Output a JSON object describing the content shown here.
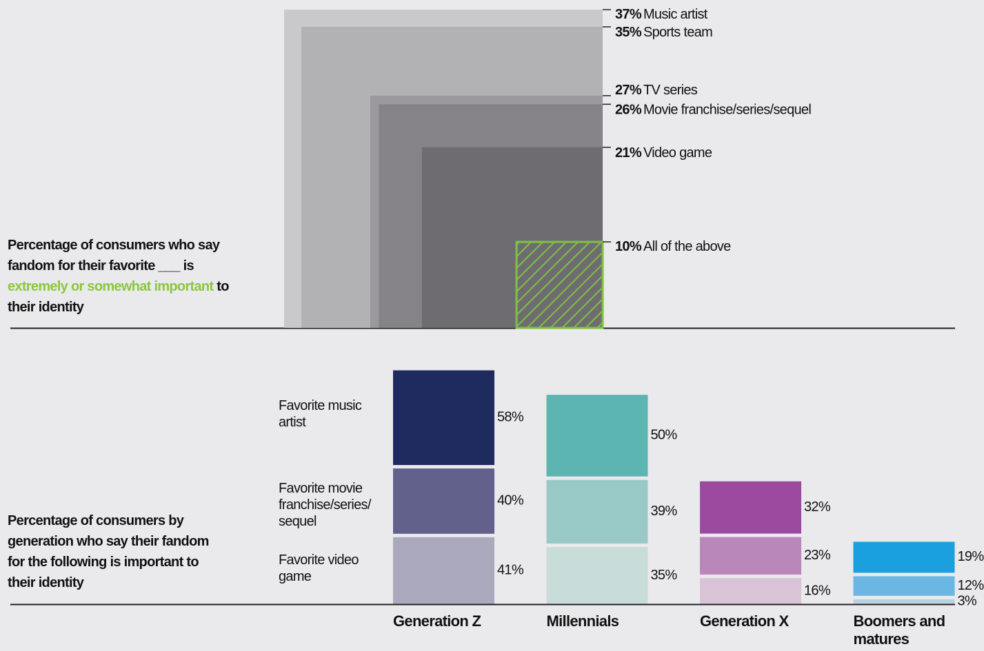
{
  "chart_data": [
    {
      "type": "nested-square",
      "title": "Percentage of consumers who say fandom for their favorite ___ is",
      "title_highlight": "extremely or somewhat important",
      "title_end": "to their identity",
      "categories": [
        "Music artist",
        "Sports team",
        "TV series",
        "Movie franchise/series/sequel",
        "Video game",
        "All of the above"
      ],
      "values": [
        37,
        35,
        27,
        26,
        21,
        10
      ],
      "value_labels": [
        "37%",
        "35%",
        "27%",
        "26%",
        "21%",
        "10%"
      ],
      "colors": [
        "#c9c9cb",
        "#b2b1b3",
        "#9b999d",
        "#858288",
        "#6f6c71",
        "#7dc242"
      ],
      "highlight_color": "#8cc63f"
    },
    {
      "type": "stacked-bar",
      "title": "Percentage of consumers by generation who say their fandom for the following is important to their identity",
      "categories": [
        "Generation Z",
        "Millennials",
        "Generation X",
        "Boomers and matures"
      ],
      "series": [
        {
          "name": "Favorite music artist",
          "colors": [
            "#1f2a5e",
            "#5db5b1",
            "#9c4a9f",
            "#1aa0df"
          ],
          "values": [
            58,
            50,
            32,
            19
          ],
          "value_labels": [
            "58%",
            "50%",
            "32%",
            "19%"
          ]
        },
        {
          "name": "Favorite movie franchise/series/ sequel",
          "colors": [
            "#62618c",
            "#98c9c6",
            "#b987b9",
            "#6ab7e3"
          ],
          "values": [
            40,
            39,
            23,
            12
          ],
          "value_labels": [
            "40%",
            "39%",
            "23%",
            "12%"
          ]
        },
        {
          "name": "Favorite video game",
          "colors": [
            "#aaa9bd",
            "#c8dcd9",
            "#d9c4d7",
            "#b9d3e3"
          ],
          "values": [
            41,
            35,
            16,
            3
          ],
          "value_labels": [
            "41%",
            "35%",
            "16%",
            "3%"
          ]
        }
      ]
    }
  ]
}
